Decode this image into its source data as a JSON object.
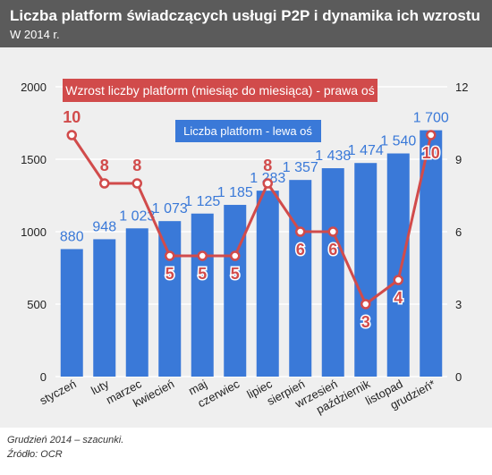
{
  "header": {
    "title": "Liczba platform świadczących usługi P2P i dynamika ich wzrostu",
    "subtitle": "W 2014 r."
  },
  "footer": {
    "note": "Grudzień 2014 – szacunki.",
    "source": "Źródło: OCR"
  },
  "colors": {
    "header_bg": "#5b5b5b",
    "plot_bg": "#efefef",
    "bar": "#3a79d8",
    "line": "#d14b4b"
  },
  "chart_data": {
    "type": "bar",
    "categories": [
      "styczeń",
      "luty",
      "marzec",
      "kwiecień",
      "maj",
      "czerwiec",
      "lipiec",
      "sierpień",
      "wrzesień",
      "październik",
      "listopad",
      "grudzień*"
    ],
    "series": [
      {
        "name": "Liczba platform - lewa oś",
        "type": "bar",
        "axis": "left",
        "values": [
          880,
          948,
          1023,
          1073,
          1125,
          1185,
          1283,
          1357,
          1438,
          1474,
          1540,
          1700
        ],
        "labels": [
          "880",
          "948",
          "1 023",
          "1 073",
          "1 125",
          "1 185",
          "1 283",
          "1 357",
          "1 438",
          "1 474",
          "1 540",
          "1 700"
        ]
      },
      {
        "name": "Wzrost liczby platform (miesiąc do miesiąca) - prawa oś",
        "type": "line",
        "axis": "right",
        "values": [
          10,
          8,
          8,
          5,
          5,
          5,
          8,
          6,
          6,
          3,
          4,
          10
        ],
        "labels": [
          "10",
          "8",
          "8",
          "5",
          "5",
          "5",
          "8",
          "6",
          "6",
          "3",
          "4",
          "10"
        ]
      }
    ],
    "y_left": {
      "min": 0,
      "max": 2000,
      "ticks": [
        0,
        500,
        1000,
        1500,
        2000
      ],
      "tick_labels": [
        "0",
        "500",
        "1000",
        "1500",
        "2000"
      ]
    },
    "y_right": {
      "min": 0,
      "max": 12,
      "ticks": [
        0,
        3,
        6,
        9,
        12
      ],
      "tick_labels": [
        "0",
        "3",
        "6",
        "9",
        "12"
      ]
    },
    "grid": true,
    "legend": "in-plot"
  }
}
